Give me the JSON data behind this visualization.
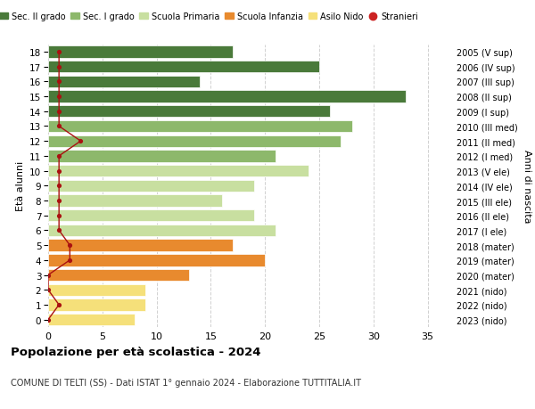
{
  "ages": [
    0,
    1,
    2,
    3,
    4,
    5,
    6,
    7,
    8,
    9,
    10,
    11,
    12,
    13,
    14,
    15,
    16,
    17,
    18
  ],
  "years": [
    "2023 (nido)",
    "2022 (nido)",
    "2021 (nido)",
    "2020 (mater)",
    "2019 (mater)",
    "2018 (mater)",
    "2017 (I ele)",
    "2016 (II ele)",
    "2015 (III ele)",
    "2014 (IV ele)",
    "2013 (V ele)",
    "2012 (I med)",
    "2011 (II med)",
    "2010 (III med)",
    "2009 (I sup)",
    "2008 (II sup)",
    "2007 (III sup)",
    "2006 (IV sup)",
    "2005 (V sup)"
  ],
  "values": [
    8,
    9,
    9,
    13,
    20,
    17,
    21,
    19,
    16,
    19,
    24,
    21,
    27,
    28,
    26,
    33,
    14,
    25,
    17
  ],
  "stranieri": [
    0,
    1,
    0,
    0,
    2,
    2,
    1,
    1,
    1,
    1,
    1,
    1,
    3,
    1,
    1,
    1,
    1,
    1,
    1
  ],
  "bar_colors": [
    "#f5e07a",
    "#f5e07a",
    "#f5e07a",
    "#e88a2e",
    "#e88a2e",
    "#e88a2e",
    "#c8dfa0",
    "#c8dfa0",
    "#c8dfa0",
    "#c8dfa0",
    "#c8dfa0",
    "#8db86b",
    "#8db86b",
    "#8db86b",
    "#4a7a3a",
    "#4a7a3a",
    "#4a7a3a",
    "#4a7a3a",
    "#4a7a3a"
  ],
  "legend_colors": [
    "#4a7a3a",
    "#8db86b",
    "#c8dfa0",
    "#e88a2e",
    "#f5e07a",
    "#cc2222"
  ],
  "legend_labels": [
    "Sec. II grado",
    "Sec. I grado",
    "Scuola Primaria",
    "Scuola Infanzia",
    "Asilo Nido",
    "Stranieri"
  ],
  "title": "Popolazione per età scolastica - 2024",
  "subtitle": "COMUNE DI TELTI (SS) - Dati ISTAT 1° gennaio 2024 - Elaborazione TUTTITALIA.IT",
  "ylabel_left": "Età alunni",
  "ylabel_right": "Anni di nascita",
  "xlim": [
    0,
    37
  ],
  "background_color": "#ffffff",
  "grid_color": "#cccccc",
  "stranieri_color": "#aa1111",
  "stranieri_line_color": "#aa1111"
}
